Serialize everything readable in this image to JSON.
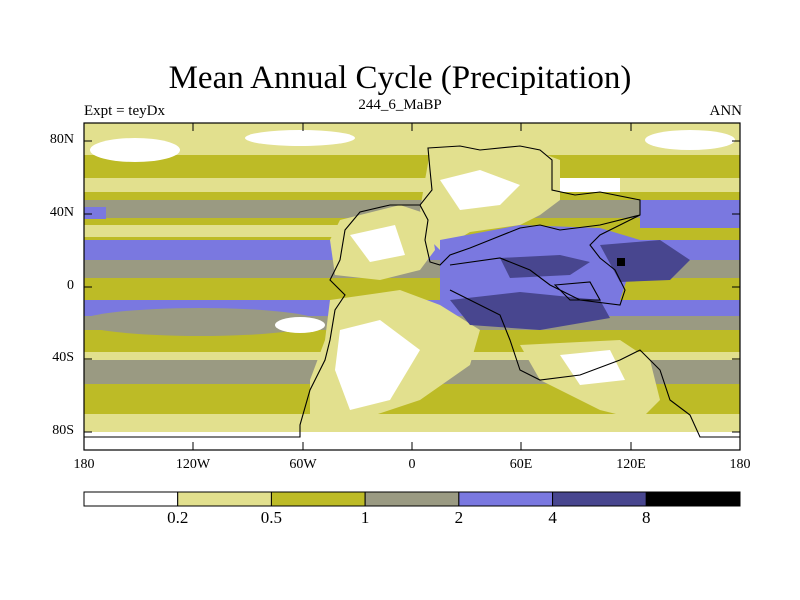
{
  "title": "Mean Annual Cycle (Precipitation)",
  "subtitle_left": "Expt = teyDx",
  "subtitle_center": "244_6_MaBP",
  "subtitle_right": "ANN",
  "y_axis_labels": [
    "80N",
    "40N",
    "0",
    "40S",
    "80S"
  ],
  "x_axis_labels": [
    "180",
    "120W",
    "60W",
    "0",
    "60E",
    "120E",
    "180"
  ],
  "colorbar": {
    "colors": [
      "#ffffff",
      "#e2e08e",
      "#bdbb26",
      "#9a9a82",
      "#7a78e0",
      "#48468f",
      "#000000"
    ],
    "labels": [
      "0.2",
      "0.5",
      "1",
      "2",
      "4",
      "8"
    ]
  }
}
